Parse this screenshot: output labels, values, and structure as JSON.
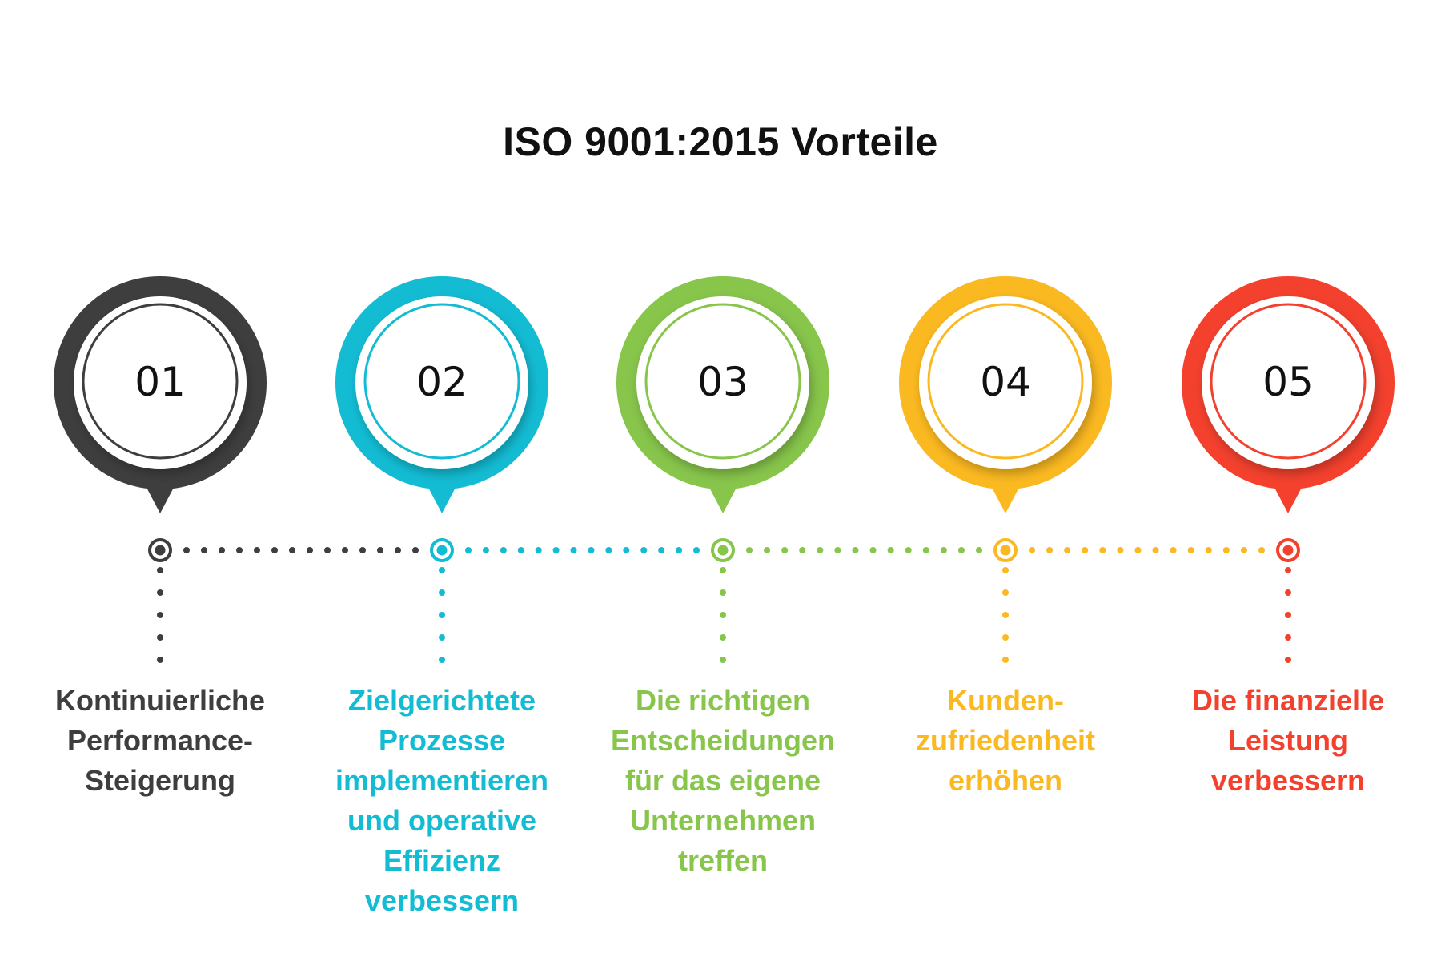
{
  "title": "ISO 9001:2015 Vorteile",
  "steps": [
    {
      "number": "01",
      "label": "Kontinuierliche\nPerformance-\nSteigerung",
      "color": "#3e3e3e"
    },
    {
      "number": "02",
      "label": "Zielgerichtete\nProzesse\nimplementieren\nund operative\nEffizienz\nverbessern",
      "color": "#13bcd3"
    },
    {
      "number": "03",
      "label": "Die richtigen\nEntscheidungen\nfür das eigene\nUnternehmen\ntreffen",
      "color": "#87c54b"
    },
    {
      "number": "04",
      "label": "Kunden-\nzufriedenheit\nerhöhen",
      "color": "#fbb921"
    },
    {
      "number": "05",
      "label": "Die finanzielle\nLeistung\nverbessern",
      "color": "#f4412e"
    }
  ]
}
